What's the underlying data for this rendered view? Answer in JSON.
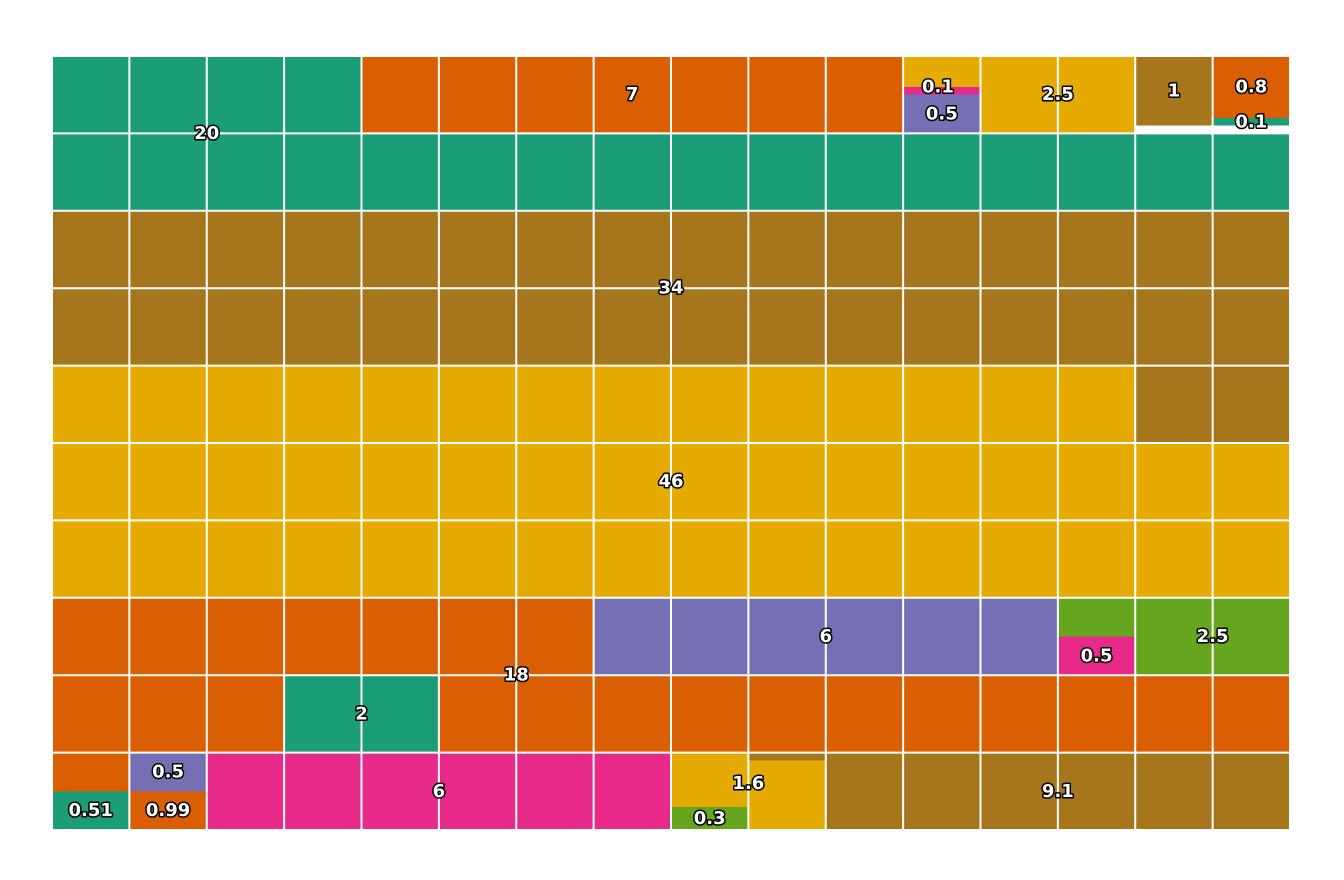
{
  "chart_data": {
    "type": "waffle",
    "grid": {
      "columns": 16,
      "rows": 10,
      "unit_value": 1
    },
    "colors": {
      "teal": "#1b9e77",
      "orange": "#d95f02",
      "purple": "#7570b3",
      "pink": "#e7298a",
      "green": "#66a61e",
      "mustard": "#e6ab02",
      "brown": "#a6761d"
    },
    "blocks": [
      {
        "label": "20",
        "value": 20,
        "color": "teal"
      },
      {
        "label": "7",
        "value": 7,
        "color": "orange"
      },
      {
        "label": "0.1",
        "value": 0.1,
        "color": "pink"
      },
      {
        "label": "0.5",
        "value": 0.5,
        "color": "purple"
      },
      {
        "label": "0.4",
        "value": 0.4,
        "color": "mustard"
      },
      {
        "label": "2.5",
        "value": 2.5,
        "color": "mustard"
      },
      {
        "label": "1",
        "value": 1,
        "color": "brown"
      },
      {
        "label": "0.8",
        "value": 0.8,
        "color": "orange"
      },
      {
        "label": "0.1",
        "value": 0.1,
        "color": "teal"
      },
      {
        "label": "34",
        "value": 34,
        "color": "brown"
      },
      {
        "label": "46",
        "value": 46,
        "color": "mustard"
      },
      {
        "label": "18",
        "value": 18,
        "color": "orange"
      },
      {
        "label": "6",
        "value": 6,
        "color": "purple"
      },
      {
        "label": "0.5",
        "value": 0.5,
        "color": "pink"
      },
      {
        "label": "2.5",
        "value": 2.5,
        "color": "green"
      },
      {
        "label": "2",
        "value": 2,
        "color": "teal"
      },
      {
        "label": "0.51",
        "value": 0.51,
        "color": "teal"
      },
      {
        "label": "0.99",
        "value": 0.99,
        "color": "orange"
      },
      {
        "label": "0.5",
        "value": 0.5,
        "color": "purple"
      },
      {
        "label": "6",
        "value": 6,
        "color": "pink"
      },
      {
        "label": "1.6",
        "value": 1.6,
        "color": "mustard"
      },
      {
        "label": "0.3",
        "value": 0.3,
        "color": "green"
      },
      {
        "label": "9.1",
        "value": 9.1,
        "color": "brown"
      }
    ]
  }
}
